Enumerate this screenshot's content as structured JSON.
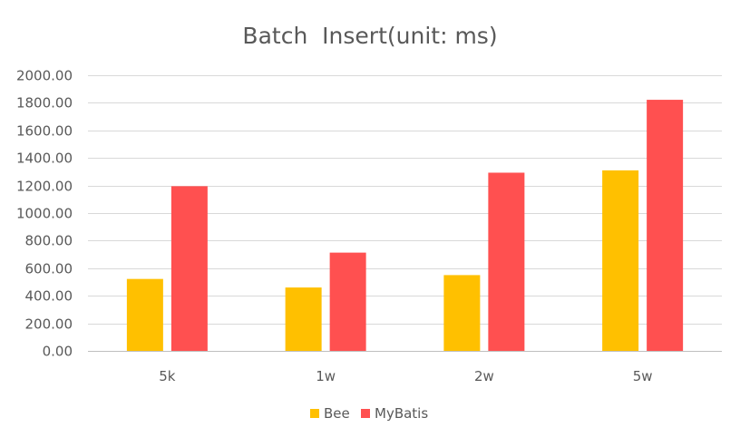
{
  "chart_data": {
    "type": "bar",
    "title": "Batch  Insert(unit: ms)",
    "xlabel": "",
    "ylabel": "",
    "categories": [
      "5k",
      "1w",
      "2w",
      "5w"
    ],
    "series": [
      {
        "name": "Bee",
        "color": "#FFC000",
        "values": [
          522,
          460,
          550,
          1310
        ]
      },
      {
        "name": "MyBatis",
        "color": "#FF5050",
        "values": [
          1195,
          713,
          1293,
          1822
        ]
      }
    ],
    "ylim": [
      0,
      2000
    ],
    "yticks": [
      "0.00",
      "200.00",
      "400.00",
      "600.00",
      "800.00",
      "1000.00",
      "1200.00",
      "1400.00",
      "1600.00",
      "1800.00",
      "2000.00"
    ],
    "ytick_values": [
      0,
      200,
      400,
      600,
      800,
      1000,
      1200,
      1400,
      1600,
      1800,
      2000
    ],
    "grid": true,
    "legend_position": "bottom"
  },
  "colors": {
    "gridline": "#D9D9D9",
    "axis": "#BFBFBF",
    "text": "#595959"
  }
}
